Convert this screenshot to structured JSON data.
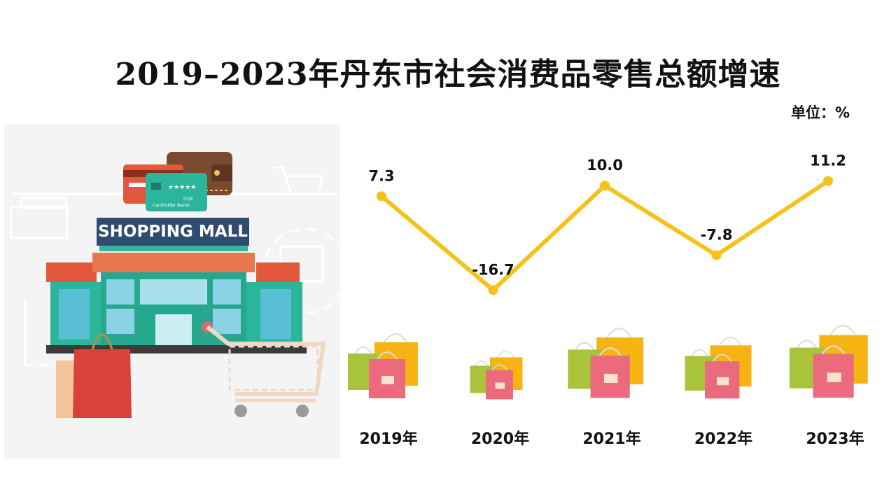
{
  "title": "2019–2023年丹东市社会消费品零售总额增速",
  "unit_label": "单位：%",
  "illustration": {
    "sign_text": "SHOPPING MALL",
    "card_text": "Cardholder Name",
    "card_code": "03/8"
  },
  "colors": {
    "line": "#F5C21B",
    "text": "#111111"
  },
  "chart_data": {
    "type": "line",
    "categories": [
      "2019年",
      "2020年",
      "2021年",
      "2022年",
      "2023年"
    ],
    "values": [
      7.3,
      -16.7,
      10.0,
      -7.8,
      11.2
    ],
    "data_labels": [
      "7.3",
      "-16.7",
      "10.0",
      "-7.8",
      "11.2"
    ],
    "title": "2019–2023年丹东市社会消费品零售总额增速",
    "unit": "单位：%",
    "xlabel": "",
    "ylabel": "",
    "ylim": [
      -17,
      12
    ],
    "grid": false,
    "legend": "none"
  }
}
